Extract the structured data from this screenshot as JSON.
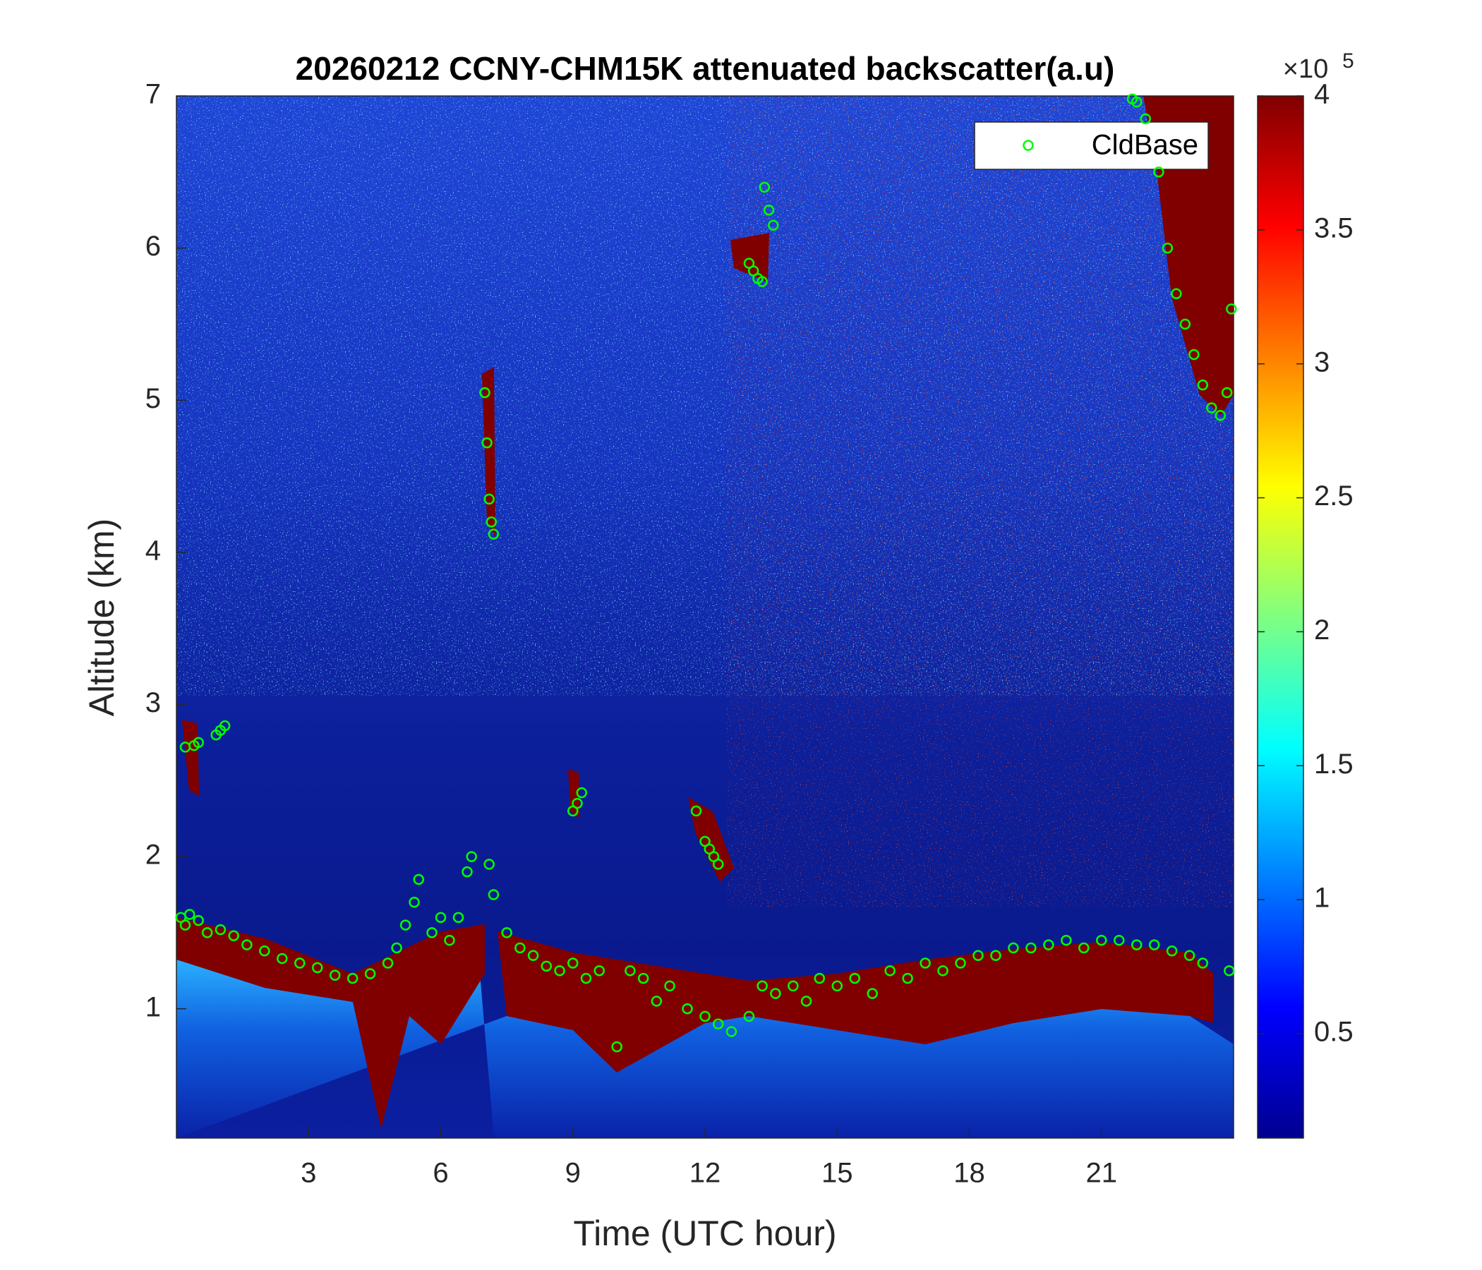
{
  "chart_data": {
    "type": "scatter",
    "title": "20260212 CCNY-CHM15K attenuated backscatter(a.u)",
    "x_label": "Time (UTC hour)",
    "y_label": "Altitude (km)",
    "xlim": [
      0,
      24
    ],
    "xticks": [
      3,
      6,
      9,
      12,
      15,
      18,
      21
    ],
    "ylim": [
      0.15,
      7
    ],
    "yticks": [
      1,
      2,
      3,
      4,
      5,
      6,
      7
    ],
    "legend": "upper right",
    "series": [
      {
        "name": "CldBase",
        "color": "#00ff00",
        "x": [
          0.1,
          0.2,
          0.3,
          0.5,
          0.7,
          1,
          1.3,
          1.6,
          2,
          2.4,
          2.8,
          3.2,
          3.6,
          4,
          4.4,
          4.8,
          5,
          5.2,
          5.4,
          5.5,
          5.8,
          6,
          6.2,
          6.4,
          6.6,
          6.7,
          7.1,
          7.2,
          7.5,
          7.8,
          8.1,
          8.4,
          8.7,
          9,
          9.3,
          9.6,
          10,
          10.3,
          10.6,
          10.9,
          11.2,
          11.6,
          12,
          12.3,
          12.6,
          13,
          13.3,
          13.6,
          14,
          14.3,
          14.6,
          15,
          15.4,
          15.8,
          16.2,
          16.6,
          17,
          17.4,
          17.8,
          18.2,
          18.6,
          19,
          19.4,
          19.8,
          20.2,
          20.6,
          21,
          21.4,
          21.8,
          22.2,
          22.6,
          23,
          23.3,
          23.9,
          0.2,
          0.4,
          0.5,
          0.9,
          1.0,
          1.1,
          9,
          9.1,
          9.2,
          11.8,
          12,
          12.1,
          12.2,
          12.3,
          7.0,
          7.05,
          7.1,
          7.15,
          7.2,
          13,
          13.1,
          13.2,
          13.3,
          13.35,
          13.45,
          13.55,
          21.7,
          21.8,
          22.0,
          22.3,
          22.5,
          22.7,
          22.9,
          23.1,
          23.3,
          23.5,
          23.7,
          23.85,
          23.95
        ],
        "values": [
          1.6,
          1.55,
          1.62,
          1.58,
          1.5,
          1.52,
          1.48,
          1.42,
          1.38,
          1.33,
          1.3,
          1.27,
          1.22,
          1.2,
          1.23,
          1.3,
          1.4,
          1.55,
          1.7,
          1.85,
          1.5,
          1.6,
          1.45,
          1.6,
          1.9,
          2.0,
          1.95,
          1.75,
          1.5,
          1.4,
          1.35,
          1.28,
          1.25,
          1.3,
          1.2,
          1.25,
          0.75,
          1.25,
          1.2,
          1.05,
          1.15,
          1.0,
          0.95,
          0.9,
          0.85,
          0.95,
          1.15,
          1.1,
          1.15,
          1.05,
          1.2,
          1.15,
          1.2,
          1.1,
          1.25,
          1.2,
          1.3,
          1.25,
          1.3,
          1.35,
          1.35,
          1.4,
          1.4,
          1.42,
          1.45,
          1.4,
          1.45,
          1.45,
          1.42,
          1.42,
          1.38,
          1.35,
          1.3,
          1.25,
          2.72,
          2.73,
          2.75,
          2.8,
          2.83,
          2.86,
          2.3,
          2.35,
          2.42,
          2.3,
          2.1,
          2.05,
          2.0,
          1.95,
          5.05,
          4.72,
          4.35,
          4.2,
          4.12,
          5.9,
          5.85,
          5.8,
          5.78,
          6.4,
          6.25,
          6.15,
          6.98,
          6.96,
          6.85,
          6.5,
          6.0,
          5.7,
          5.5,
          5.3,
          5.1,
          4.95,
          4.9,
          5.05,
          5.6
        ]
      }
    ],
    "colorbar": {
      "colormap": "jet",
      "lim": [
        0.11,
        4
      ],
      "ticks": [
        0.5,
        1,
        1.5,
        2,
        2.5,
        3,
        3.5,
        4
      ],
      "multiplier_base": "×10",
      "multiplier_exponent": "5"
    }
  }
}
